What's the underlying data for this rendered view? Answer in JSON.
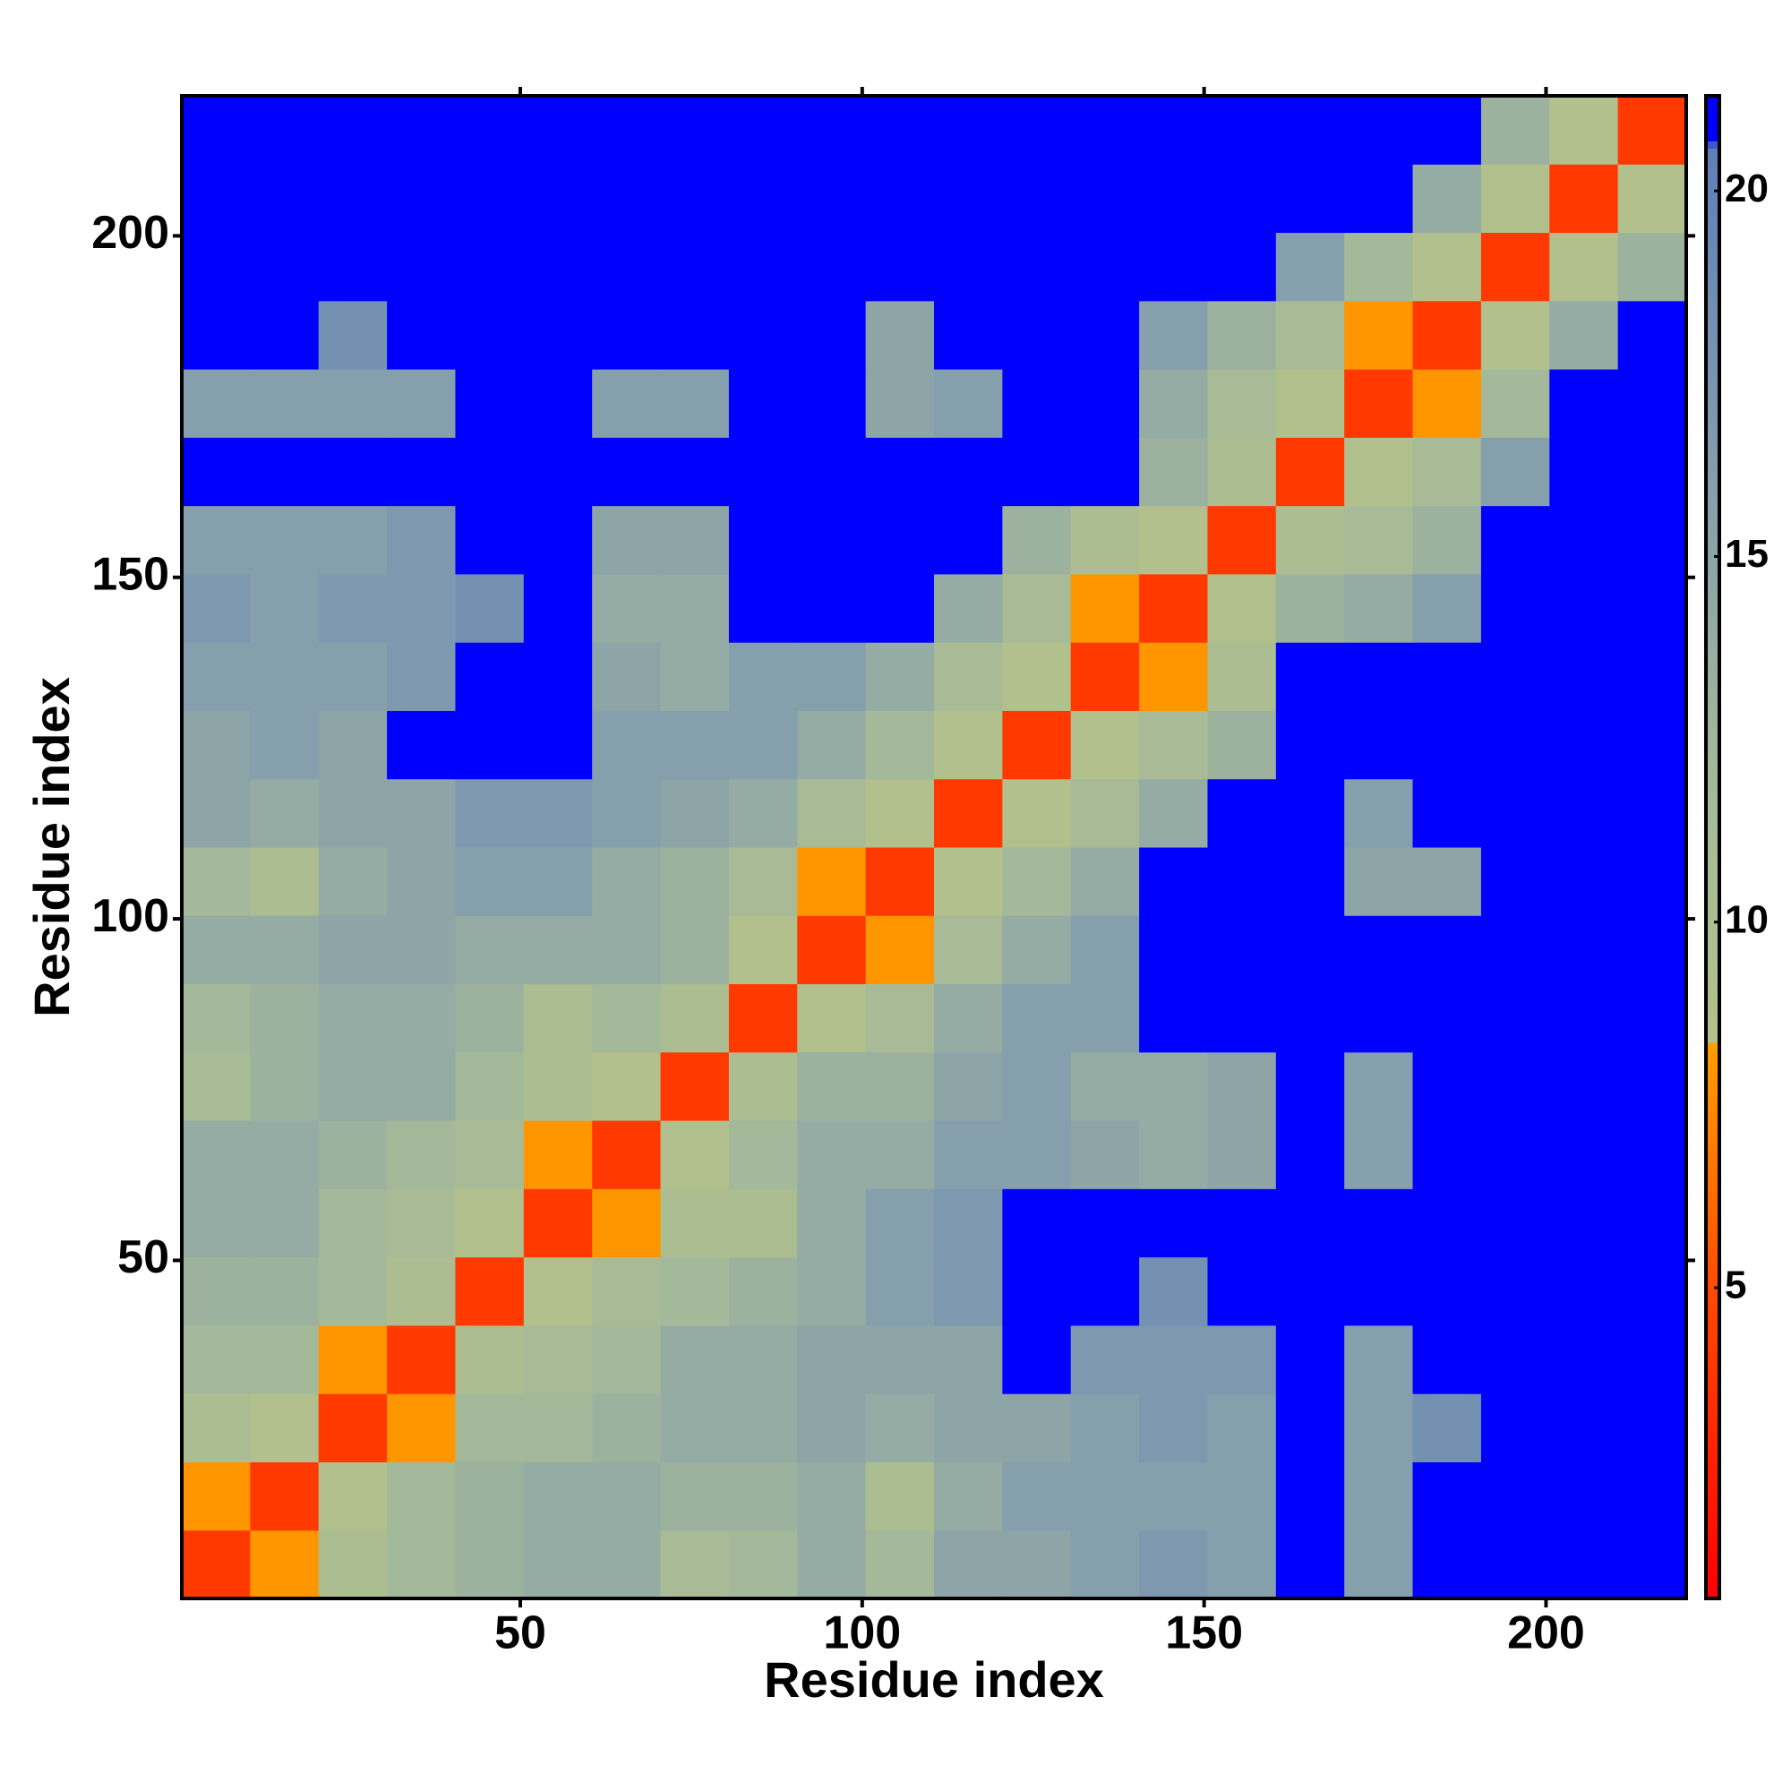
{
  "chart_data": {
    "type": "heatmap",
    "xlabel": "Residue index",
    "ylabel": "Residue index",
    "xlim": [
      0.5,
      220.5
    ],
    "ylim": [
      0.5,
      220.5
    ],
    "xticks": [
      50,
      100,
      150,
      200
    ],
    "yticks": [
      50,
      100,
      150,
      200
    ],
    "xbins": [
      0.5,
      10.5,
      20.5,
      30.5,
      40.5,
      50.5,
      60.5,
      70.5,
      80.5,
      90.5,
      100.5,
      110.5,
      120.5,
      130.5,
      140.5,
      150.5,
      160.5,
      170.5,
      180.5,
      190.5,
      200.5,
      210.5,
      220.5
    ],
    "ybins": [
      0.5,
      10.5,
      20.5,
      30.5,
      40.5,
      50.5,
      60.5,
      70.5,
      80.5,
      90.5,
      100.5,
      110.5,
      120.5,
      130.5,
      140.5,
      150.5,
      160.5,
      170.5,
      180.5,
      190.5,
      200.5,
      210.5,
      220.5
    ],
    "z": [
      [
        4,
        8,
        10,
        12,
        13,
        14,
        14,
        11,
        12,
        14,
        12,
        15,
        15,
        16,
        17,
        16,
        21,
        16,
        21,
        21,
        21,
        21
      ],
      [
        8,
        4,
        9,
        12,
        13,
        14,
        14,
        13,
        13,
        14,
        10,
        14,
        16,
        16,
        16,
        16,
        21,
        16,
        21,
        21,
        21,
        21
      ],
      [
        10,
        9,
        4,
        8,
        12,
        12,
        13,
        14,
        14,
        15,
        14,
        15,
        15,
        16,
        17,
        16,
        21,
        16,
        18,
        21,
        21,
        21
      ],
      [
        12,
        12,
        8,
        4,
        10,
        11,
        12,
        14,
        14,
        15,
        15,
        15,
        21,
        17,
        17,
        17,
        21,
        16,
        21,
        21,
        21,
        21
      ],
      [
        13,
        13,
        12,
        10,
        4,
        9,
        11,
        12,
        13,
        14,
        16,
        17,
        21,
        21,
        18,
        21,
        21,
        21,
        21,
        21,
        21,
        21
      ],
      [
        14,
        14,
        12,
        11,
        9,
        4,
        8,
        10,
        10,
        14,
        16,
        17,
        21,
        21,
        21,
        21,
        21,
        21,
        21,
        21,
        21,
        21
      ],
      [
        14,
        14,
        13,
        12,
        11,
        8,
        4,
        9,
        12,
        14,
        14,
        16,
        16,
        15,
        14,
        15,
        21,
        16,
        21,
        21,
        21,
        21
      ],
      [
        11,
        13,
        14,
        14,
        12,
        10,
        9,
        4,
        10,
        13,
        13,
        15,
        16,
        14,
        14,
        15,
        21,
        16,
        21,
        21,
        21,
        21
      ],
      [
        12,
        13,
        14,
        14,
        13,
        10,
        12,
        10,
        4,
        9,
        11,
        14,
        16,
        16,
        21,
        21,
        21,
        21,
        21,
        21,
        21,
        21
      ],
      [
        14,
        14,
        15,
        15,
        14,
        14,
        14,
        13,
        9,
        4,
        8,
        11,
        14,
        16,
        21,
        21,
        21,
        21,
        21,
        21,
        21,
        21
      ],
      [
        12,
        10,
        14,
        15,
        16,
        16,
        14,
        13,
        11,
        8,
        4,
        9,
        12,
        14,
        21,
        21,
        21,
        15,
        15,
        21,
        21,
        21
      ],
      [
        15,
        14,
        15,
        15,
        17,
        17,
        16,
        15,
        14,
        11,
        9,
        4,
        9,
        11,
        14,
        21,
        21,
        16,
        21,
        21,
        21,
        21
      ],
      [
        15,
        16,
        15,
        21,
        21,
        21,
        16,
        16,
        16,
        14,
        12,
        9,
        4,
        9,
        11,
        13,
        21,
        21,
        21,
        21,
        21,
        21
      ],
      [
        16,
        16,
        16,
        17,
        21,
        21,
        15,
        14,
        16,
        16,
        14,
        11,
        9,
        4,
        8,
        10,
        21,
        21,
        21,
        21,
        21,
        21
      ],
      [
        17,
        16,
        17,
        17,
        18,
        21,
        14,
        14,
        21,
        21,
        21,
        14,
        11,
        8,
        4,
        9,
        13,
        14,
        16,
        21,
        21,
        21
      ],
      [
        16,
        16,
        16,
        17,
        21,
        21,
        15,
        15,
        21,
        21,
        21,
        21,
        13,
        10,
        9,
        4,
        10,
        11,
        13,
        21,
        21,
        21
      ],
      [
        21,
        21,
        21,
        21,
        21,
        21,
        21,
        21,
        21,
        21,
        21,
        21,
        21,
        21,
        13,
        10,
        4,
        9,
        11,
        16,
        21,
        21
      ],
      [
        16,
        16,
        16,
        16,
        21,
        21,
        16,
        16,
        21,
        21,
        15,
        16,
        21,
        21,
        14,
        11,
        9,
        4,
        8,
        12,
        21,
        21
      ],
      [
        21,
        21,
        18,
        21,
        21,
        21,
        21,
        21,
        21,
        21,
        15,
        21,
        21,
        21,
        16,
        13,
        11,
        8,
        4,
        9,
        14,
        21
      ],
      [
        21,
        21,
        21,
        21,
        21,
        21,
        21,
        21,
        21,
        21,
        21,
        21,
        21,
        21,
        21,
        21,
        16,
        12,
        9,
        4,
        9,
        13
      ],
      [
        21,
        21,
        21,
        21,
        21,
        21,
        21,
        21,
        21,
        21,
        21,
        21,
        21,
        21,
        21,
        21,
        21,
        21,
        14,
        9,
        4,
        9
      ],
      [
        21,
        21,
        21,
        21,
        21,
        21,
        21,
        21,
        21,
        21,
        21,
        21,
        21,
        21,
        21,
        21,
        21,
        21,
        21,
        13,
        9,
        4
      ]
    ],
    "clim": [
      0.75,
      21.3
    ],
    "cticks": [
      5,
      10,
      15,
      20
    ],
    "colorscale": [
      [
        0.75,
        "#ff0000"
      ],
      [
        5,
        "#ff4a00"
      ],
      [
        8.3,
        "#ff9e00"
      ],
      [
        8.4,
        "#b4c18a"
      ],
      [
        12,
        "#a3b99a"
      ],
      [
        17,
        "#7e98b0"
      ],
      [
        20.6,
        "#5f7fb8"
      ],
      [
        20.7,
        "#0000ff"
      ],
      [
        21.3,
        "#0000ff"
      ]
    ]
  }
}
